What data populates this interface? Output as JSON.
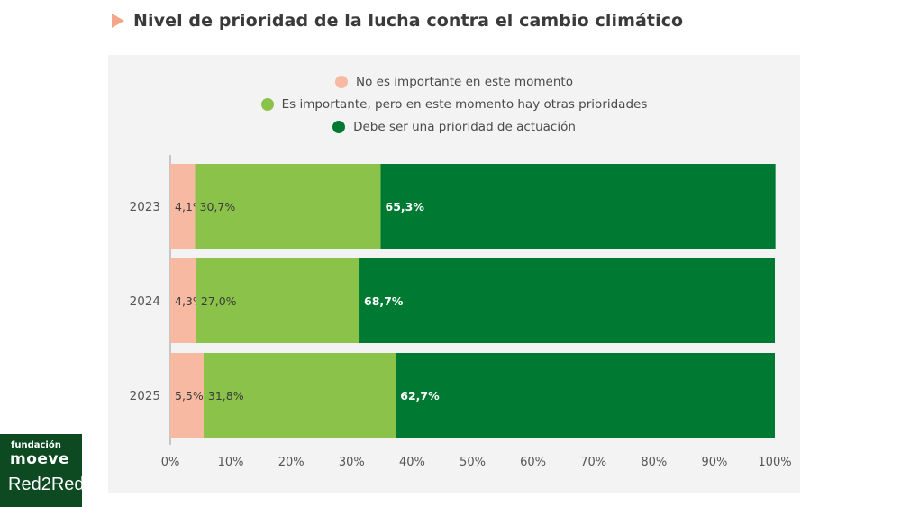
{
  "header": {
    "title": "Nivel de prioridad de la lucha contra el cambio climático"
  },
  "colors": {
    "accent_arrow": "#f2a78a",
    "panel": "#f3f3f3",
    "logo_bg": "#0d4a22"
  },
  "chart_data": {
    "type": "bar",
    "orientation": "horizontal",
    "stacked": true,
    "title": "Nivel de prioridad de la lucha contra el cambio climático",
    "categories": [
      "2023",
      "2024",
      "2025"
    ],
    "series": [
      {
        "name": "No es importante en este momento",
        "color": "#f7b9a1",
        "values": [
          4.1,
          4.3,
          5.5
        ],
        "labels": [
          "4,1%",
          "4,3%",
          "5,5%"
        ],
        "label_color": "#3a3a3a"
      },
      {
        "name": "Es importante, pero en este momento hay otras prioridades",
        "color": "#8bc34a",
        "values": [
          30.7,
          27.0,
          31.8
        ],
        "labels": [
          "30,7%",
          "27,0%",
          "31,8%"
        ],
        "label_color": "#3a3a3a"
      },
      {
        "name": "Debe ser una prioridad de actuación",
        "color": "#007a33",
        "values": [
          65.3,
          68.7,
          62.7
        ],
        "labels": [
          "65,3%",
          "68,7%",
          "62,7%"
        ],
        "label_color": "#ffffff"
      }
    ],
    "xlim": [
      0,
      100
    ],
    "x_ticks": [
      "0%",
      "10%",
      "20%",
      "30%",
      "40%",
      "50%",
      "60%",
      "70%",
      "80%",
      "90%",
      "100%"
    ],
    "legend": "top-center",
    "grid": false
  },
  "logo": {
    "small": "fundación",
    "brand": "moeve",
    "red2red": "Red2Red"
  }
}
